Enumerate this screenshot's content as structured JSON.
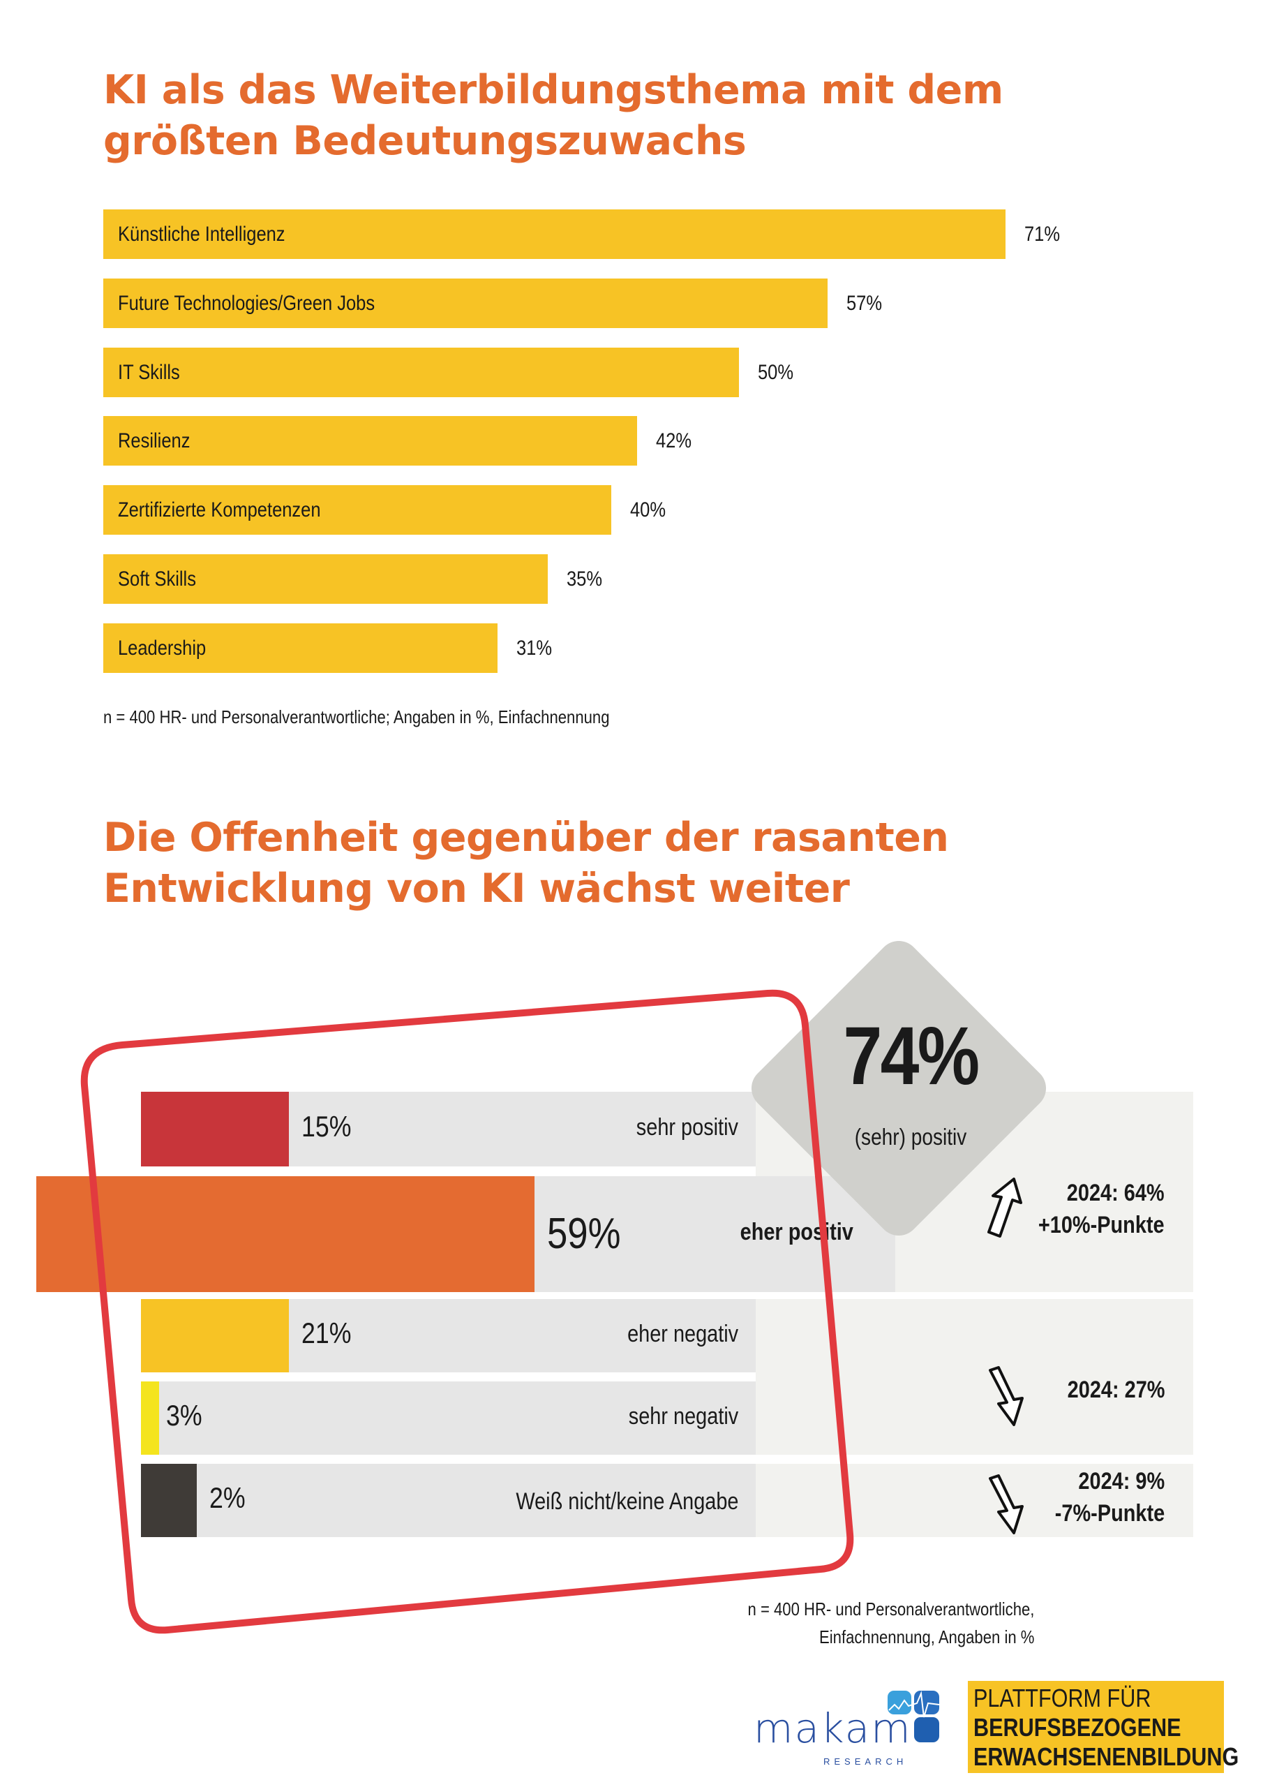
{
  "chart_data": [
    {
      "type": "bar",
      "title": "KI als das Weiterbildungsthema mit dem größten Bedeutungszuwachs",
      "title_lines": [
        "KI als das Weiterbildungsthema mit dem",
        "größten Bedeutungszuwachs"
      ],
      "categories": [
        "Künstliche Intelligenz",
        "Future Technologies/Green Jobs",
        "IT Skills",
        "Resilienz",
        "Zertifizierte Kompetenzen",
        "Soft Skills",
        "Leadership"
      ],
      "values": [
        71,
        57,
        50,
        42,
        40,
        35,
        31
      ],
      "value_labels": [
        "71%",
        "57%",
        "50%",
        "42%",
        "40%",
        "35%",
        "31%"
      ],
      "unit": "%",
      "color": "#f7c325",
      "note": "n = 400 HR- und Personalverantwortliche; Angaben in %, Einfachnennung"
    },
    {
      "type": "bar",
      "title": "Die Offenheit gegenüber der rasanten Entwicklung von KI wächst weiter",
      "title_lines": [
        "Die Offenheit gegenüber der rasanten",
        "Entwicklung von KI wächst weiter"
      ],
      "categories": [
        "sehr positiv",
        "eher positiv",
        "eher negativ",
        "sehr negativ",
        "Weiß nicht/keine Angabe"
      ],
      "values": [
        15,
        59,
        21,
        3,
        2
      ],
      "value_labels": [
        "15%",
        "59%",
        "21%",
        "3%",
        "2%"
      ],
      "colors": [
        "#c8353a",
        "#e46b31",
        "#f7c325",
        "#f4e41e",
        "#3f3b37"
      ],
      "highlight": {
        "value": "74%",
        "label": "(sehr) positiv"
      },
      "comparison": [
        {
          "lines": [
            "2024: 64%",
            "+10%-Punkte"
          ],
          "direction": "up"
        },
        {
          "lines": [
            "2024: 27%"
          ],
          "direction": "down"
        },
        {
          "lines": [
            "2024: 9%",
            "-7%-Punkte"
          ],
          "direction": "down"
        }
      ],
      "note_lines": [
        "n = 400 HR- und Personalverantwortliche,",
        "Einfachnennung, Angaben in %"
      ]
    }
  ],
  "logos": {
    "makam": {
      "name": "makam",
      "sub": "RESEARCH"
    },
    "platform": {
      "line1": "PLATTFORM FÜR",
      "line2": "BERUFSBEZOGENE",
      "line3": "ERWACHSENENBILDUNG"
    }
  }
}
